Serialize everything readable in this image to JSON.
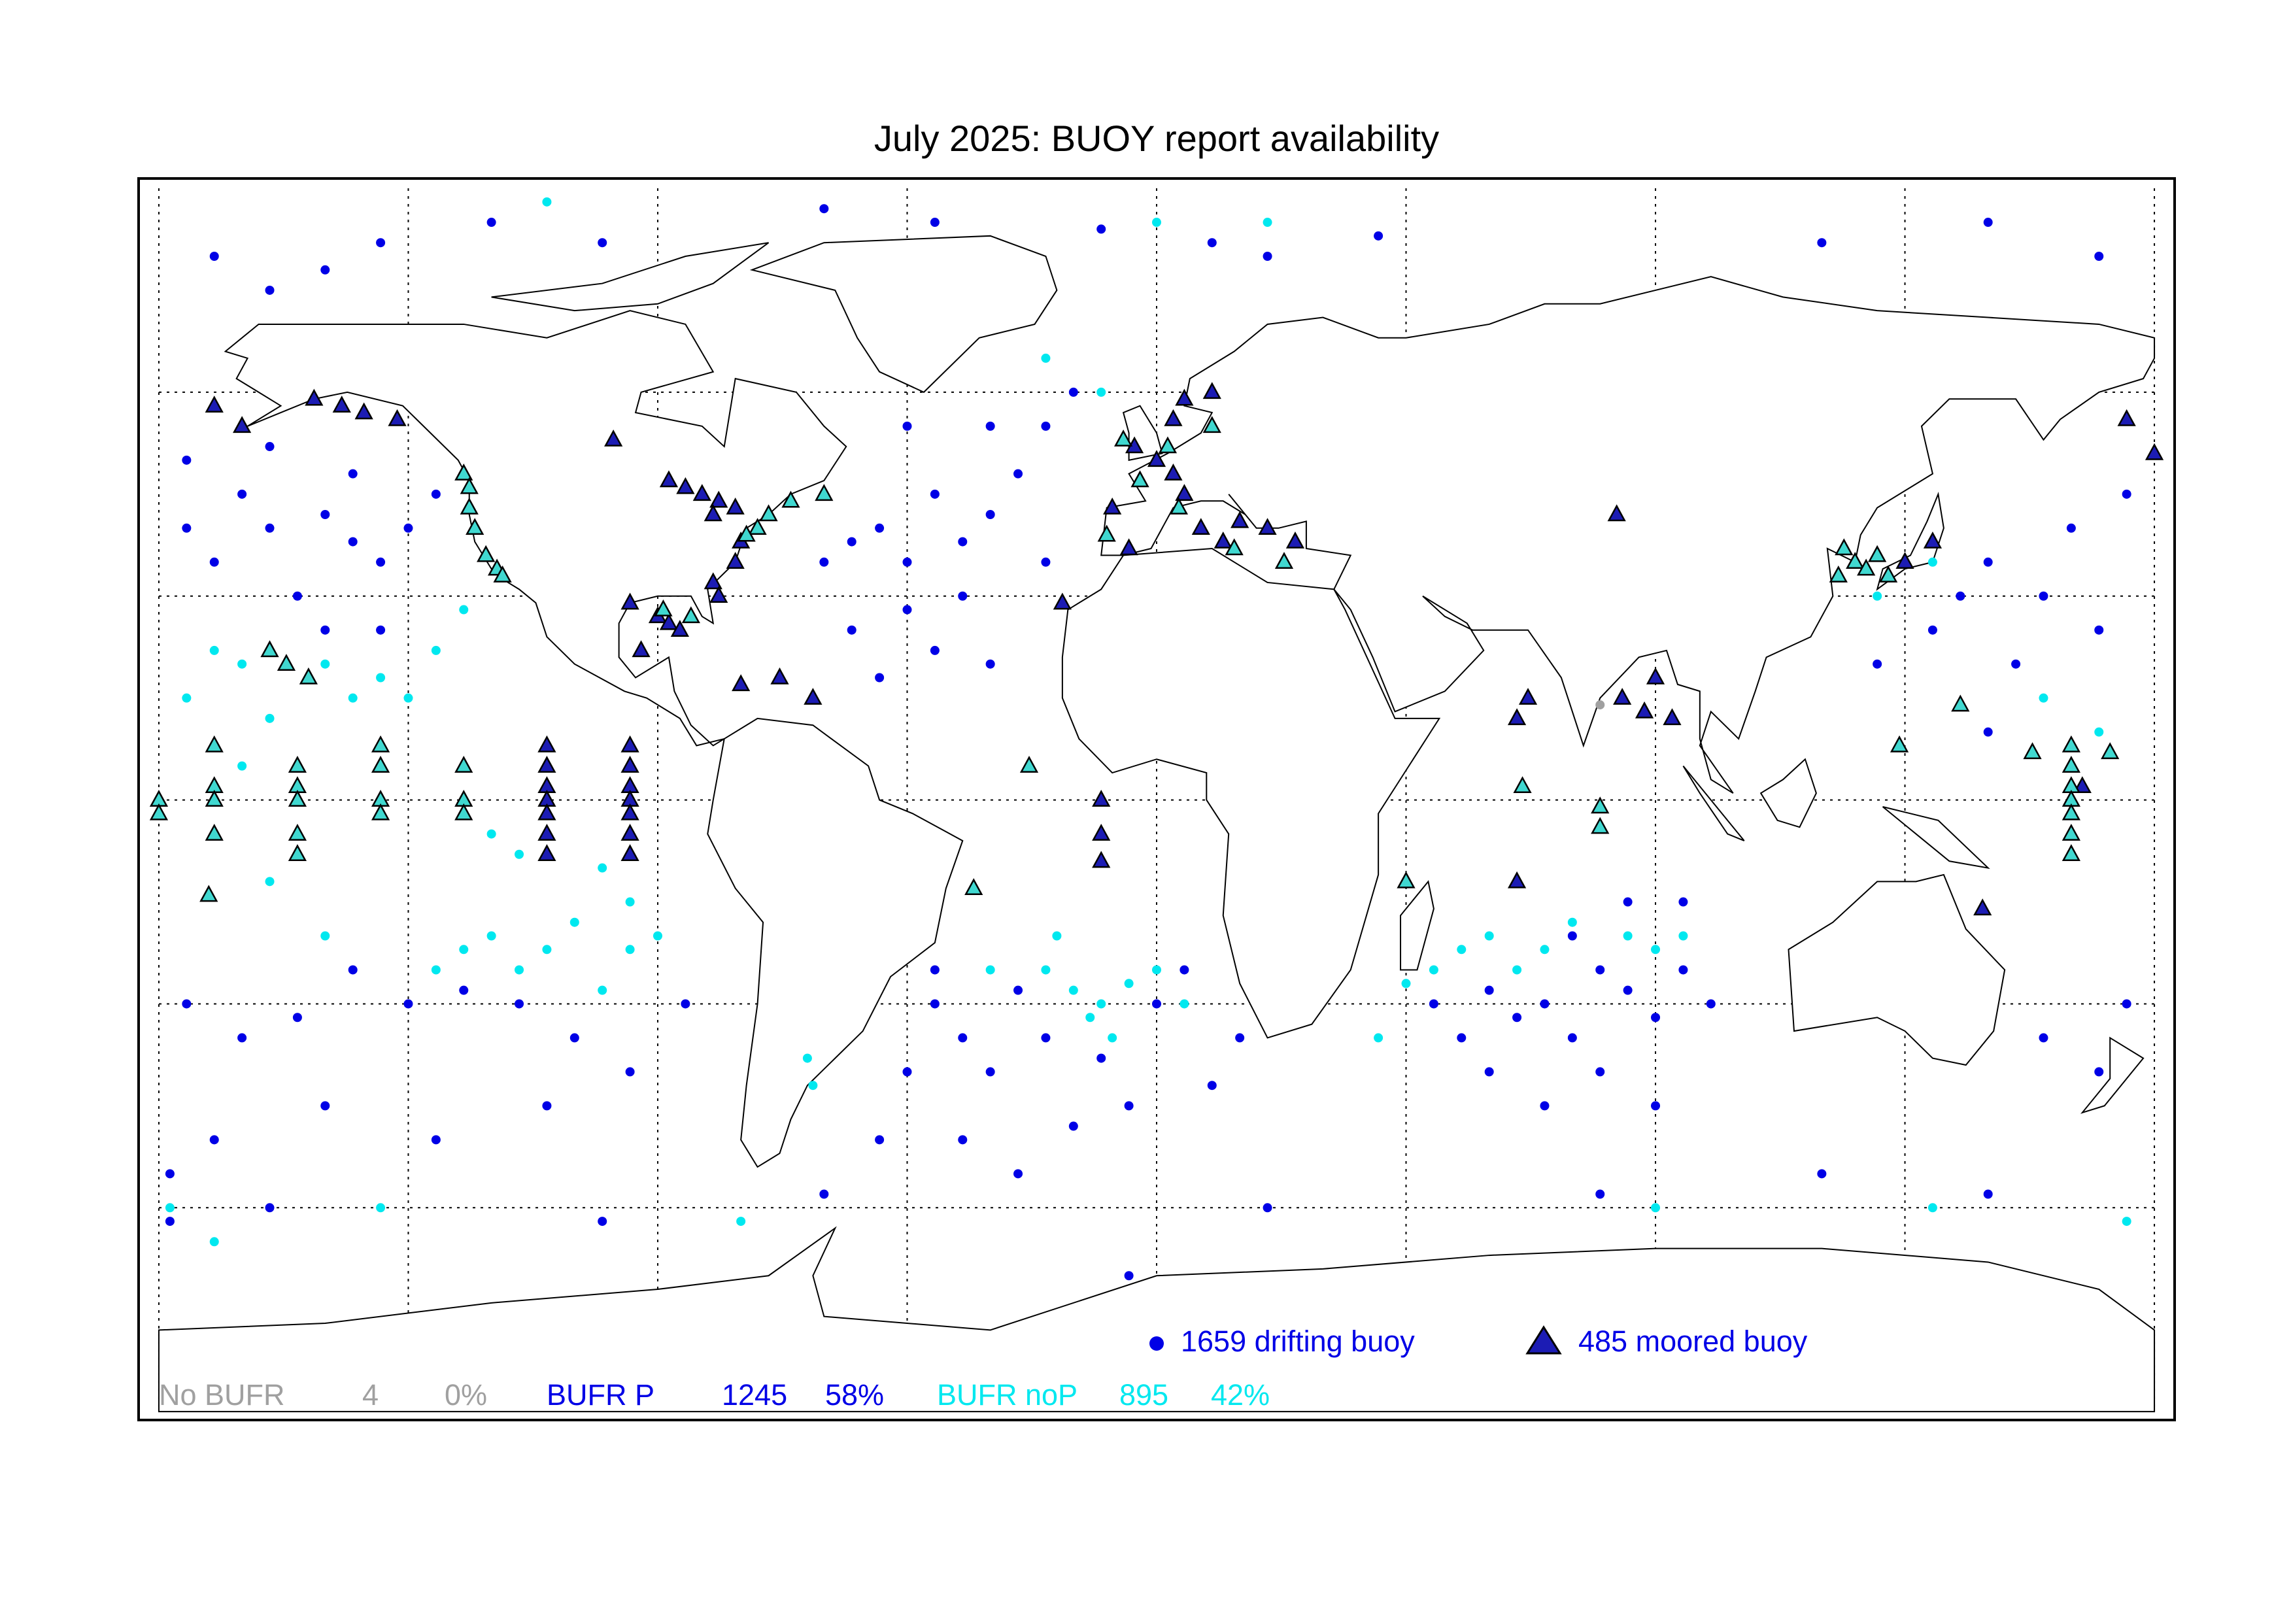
{
  "title": "July 2025: BUOY report availability",
  "graticule": {
    "longitudes": [
      -180,
      -135,
      -90,
      -45,
      0,
      45,
      90,
      135,
      180
    ],
    "latitudes": [
      -60,
      -30,
      0,
      30,
      60
    ]
  },
  "legend": [
    {
      "label": "1659 drifting buoy",
      "marker": "circle",
      "color": "#0000e6"
    },
    {
      "label": "485 moored buoy",
      "marker": "triangle",
      "color": "#1c1cb4"
    }
  ],
  "status_summary": [
    {
      "label": "No BUFR",
      "count": 4,
      "percent": "0%",
      "color": "#a0a0a0"
    },
    {
      "label": "BUFR P",
      "count": 1245,
      "percent": "58%",
      "color": "#0000e6"
    },
    {
      "label": "BUFR noP",
      "count": 895,
      "percent": "42%",
      "color": "#00e8ef"
    }
  ],
  "buoys": [
    {
      "marker": "circle",
      "color": "#0000e6",
      "points": [
        [
          -175,
          50
        ],
        [
          -165,
          45
        ],
        [
          -160,
          40
        ],
        [
          -150,
          42
        ],
        [
          -145,
          38
        ],
        [
          -140,
          35
        ],
        [
          -135,
          40
        ],
        [
          -130,
          45
        ],
        [
          -155,
          30
        ],
        [
          -150,
          25
        ],
        [
          -140,
          25
        ],
        [
          -145,
          48
        ],
        [
          -170,
          35
        ],
        [
          -160,
          52
        ],
        [
          -175,
          40
        ],
        [
          -170,
          80
        ],
        [
          -150,
          78
        ],
        [
          -140,
          82
        ],
        [
          -120,
          85
        ],
        [
          -100,
          82
        ],
        [
          -60,
          87
        ],
        [
          -40,
          85
        ],
        [
          -10,
          84
        ],
        [
          10,
          82
        ],
        [
          20,
          80
        ],
        [
          40,
          83
        ],
        [
          -160,
          75
        ],
        [
          120,
          82
        ],
        [
          150,
          85
        ],
        [
          170,
          80
        ],
        [
          -60,
          35
        ],
        [
          -55,
          38
        ],
        [
          -50,
          40
        ],
        [
          -45,
          35
        ],
        [
          -40,
          45
        ],
        [
          -35,
          38
        ],
        [
          -30,
          42
        ],
        [
          -25,
          48
        ],
        [
          -20,
          35
        ],
        [
          -45,
          28
        ],
        [
          -55,
          25
        ],
        [
          -40,
          22
        ],
        [
          -35,
          30
        ],
        [
          -30,
          20
        ],
        [
          -50,
          18
        ],
        [
          -20,
          55
        ],
        [
          -30,
          55
        ],
        [
          -15,
          60
        ],
        [
          -45,
          55
        ],
        [
          -40,
          -30
        ],
        [
          -35,
          -35
        ],
        [
          -30,
          -40
        ],
        [
          -25,
          -28
        ],
        [
          -20,
          -35
        ],
        [
          -10,
          -38
        ],
        [
          -5,
          -45
        ],
        [
          0,
          -30
        ],
        [
          5,
          -25
        ],
        [
          10,
          -42
        ],
        [
          -45,
          -40
        ],
        [
          -50,
          -50
        ],
        [
          -35,
          -50
        ],
        [
          -25,
          -55
        ],
        [
          -15,
          -48
        ],
        [
          15,
          -35
        ],
        [
          -40,
          -25
        ],
        [
          50,
          -30
        ],
        [
          55,
          -35
        ],
        [
          60,
          -28
        ],
        [
          65,
          -32
        ],
        [
          70,
          -30
        ],
        [
          75,
          -35
        ],
        [
          80,
          -25
        ],
        [
          85,
          -28
        ],
        [
          90,
          -32
        ],
        [
          95,
          -25
        ],
        [
          60,
          -40
        ],
        [
          70,
          -45
        ],
        [
          80,
          -40
        ],
        [
          90,
          -45
        ],
        [
          100,
          -30
        ],
        [
          75,
          -20
        ],
        [
          85,
          -15
        ],
        [
          95,
          -15
        ],
        [
          -175,
          -30
        ],
        [
          -165,
          -35
        ],
        [
          -155,
          -32
        ],
        [
          -145,
          -25
        ],
        [
          -135,
          -30
        ],
        [
          -125,
          -28
        ],
        [
          -115,
          -30
        ],
        [
          -105,
          -35
        ],
        [
          -95,
          -40
        ],
        [
          -85,
          -30
        ],
        [
          -150,
          -45
        ],
        [
          -130,
          -50
        ],
        [
          -110,
          -45
        ],
        [
          -170,
          -50
        ],
        [
          -160,
          -60
        ],
        [
          160,
          -35
        ],
        [
          170,
          -40
        ],
        [
          175,
          -30
        ],
        [
          -178,
          -55
        ],
        [
          140,
          25
        ],
        [
          145,
          30
        ],
        [
          150,
          35
        ],
        [
          155,
          20
        ],
        [
          160,
          30
        ],
        [
          165,
          40
        ],
        [
          170,
          25
        ],
        [
          175,
          45
        ],
        [
          130,
          20
        ],
        [
          150,
          10
        ],
        [
          -178,
          -62
        ],
        [
          120,
          -55
        ],
        [
          150,
          -58
        ],
        [
          -100,
          -62
        ],
        [
          20,
          -60
        ],
        [
          80,
          -58
        ],
        [
          -60,
          -58
        ],
        [
          -5,
          -70
        ]
      ]
    },
    {
      "marker": "circle",
      "color": "#00e8ef",
      "points": [
        [
          -170,
          22
        ],
        [
          -165,
          20
        ],
        [
          -150,
          20
        ],
        [
          -145,
          15
        ],
        [
          -140,
          18
        ],
        [
          -130,
          22
        ],
        [
          -125,
          28
        ],
        [
          -160,
          12
        ],
        [
          -175,
          15
        ],
        [
          -135,
          15
        ],
        [
          -120,
          -5
        ],
        [
          -115,
          -8
        ],
        [
          -100,
          -10
        ],
        [
          -95,
          -15
        ],
        [
          -150,
          -20
        ],
        [
          -160,
          -12
        ],
        [
          -165,
          5
        ],
        [
          -130,
          -25
        ],
        [
          -125,
          -22
        ],
        [
          -120,
          -20
        ],
        [
          -115,
          -25
        ],
        [
          -110,
          -22
        ],
        [
          -105,
          -18
        ],
        [
          -95,
          -22
        ],
        [
          -90,
          -20
        ],
        [
          -100,
          -28
        ],
        [
          -20,
          -25
        ],
        [
          -15,
          -28
        ],
        [
          -10,
          -30
        ],
        [
          -5,
          -27
        ],
        [
          0,
          -25
        ],
        [
          -12,
          -32
        ],
        [
          -8,
          -35
        ],
        [
          -18,
          -20
        ],
        [
          5,
          -30
        ],
        [
          -30,
          -25
        ],
        [
          45,
          -27
        ],
        [
          50,
          -25
        ],
        [
          55,
          -22
        ],
        [
          60,
          -20
        ],
        [
          65,
          -25
        ],
        [
          70,
          -22
        ],
        [
          75,
          -18
        ],
        [
          85,
          -20
        ],
        [
          90,
          -22
        ],
        [
          95,
          -20
        ],
        [
          40,
          -35
        ],
        [
          -62,
          -42
        ],
        [
          -63,
          -38
        ],
        [
          -75,
          -62
        ],
        [
          -178,
          -60
        ],
        [
          175,
          -62
        ],
        [
          140,
          -60
        ],
        [
          90,
          -60
        ],
        [
          -140,
          -60
        ],
        [
          -170,
          -65
        ],
        [
          130,
          30
        ],
        [
          140,
          35
        ],
        [
          160,
          15
        ],
        [
          170,
          10
        ],
        [
          -10,
          60
        ],
        [
          -20,
          65
        ],
        [
          20,
          85
        ],
        [
          -110,
          88
        ],
        [
          0,
          85
        ]
      ]
    },
    {
      "marker": "circle",
      "color": "#a0a0a0",
      "points": [
        [
          80,
          14
        ]
      ]
    },
    {
      "marker": "triangle",
      "color": "#1c1cb4",
      "points": [
        [
          -110,
          8
        ],
        [
          -110,
          5
        ],
        [
          -110,
          2
        ],
        [
          -110,
          0
        ],
        [
          -110,
          -2
        ],
        [
          -110,
          -5
        ],
        [
          -110,
          -8
        ],
        [
          -95,
          8
        ],
        [
          -95,
          5
        ],
        [
          -95,
          2
        ],
        [
          -95,
          0
        ],
        [
          -95,
          -2
        ],
        [
          -95,
          -5
        ],
        [
          -95,
          -8
        ],
        [
          -152,
          59
        ],
        [
          -147,
          58
        ],
        [
          -143,
          57
        ],
        [
          -137,
          56
        ],
        [
          -165,
          55
        ],
        [
          -170,
          58
        ],
        [
          -98,
          53
        ],
        [
          -88,
          47
        ],
        [
          -85,
          46
        ],
        [
          -82,
          45
        ],
        [
          -79,
          44
        ],
        [
          -76,
          43
        ],
        [
          -80,
          42
        ],
        [
          -75,
          38
        ],
        [
          -76,
          35
        ],
        [
          -80,
          32
        ],
        [
          -79,
          30
        ],
        [
          -95,
          29
        ],
        [
          -90,
          27
        ],
        [
          -88,
          26
        ],
        [
          -86,
          25
        ],
        [
          -93,
          22
        ],
        [
          -68,
          18
        ],
        [
          -62,
          15
        ],
        [
          -75,
          17
        ],
        [
          -4,
          52
        ],
        [
          0,
          50
        ],
        [
          3,
          48
        ],
        [
          5,
          45
        ],
        [
          8,
          40
        ],
        [
          12,
          38
        ],
        [
          15,
          41
        ],
        [
          20,
          40
        ],
        [
          25,
          38
        ],
        [
          -8,
          43
        ],
        [
          -5,
          37
        ],
        [
          3,
          56
        ],
        [
          5,
          59
        ],
        [
          10,
          60
        ],
        [
          -10,
          0
        ],
        [
          -10,
          -5
        ],
        [
          -10,
          -9
        ],
        [
          -17,
          29
        ],
        [
          83,
          42
        ],
        [
          67,
          15
        ],
        [
          65,
          12
        ],
        [
          65,
          -12
        ],
        [
          84,
          15
        ],
        [
          88,
          13
        ],
        [
          90,
          18
        ],
        [
          93,
          12
        ],
        [
          140,
          38
        ],
        [
          135,
          35
        ],
        [
          175,
          56
        ],
        [
          180,
          51
        ],
        [
          149,
          -16
        ],
        [
          167,
          2
        ]
      ]
    },
    {
      "marker": "triangle",
      "color": "#40d8d0",
      "points": [
        [
          -170,
          8
        ],
        [
          -170,
          2
        ],
        [
          -170,
          0
        ],
        [
          -170,
          -5
        ],
        [
          -155,
          5
        ],
        [
          -155,
          2
        ],
        [
          -155,
          0
        ],
        [
          -155,
          -5
        ],
        [
          -155,
          -8
        ],
        [
          -140,
          8
        ],
        [
          -140,
          5
        ],
        [
          -140,
          0
        ],
        [
          -140,
          -2
        ],
        [
          -125,
          5
        ],
        [
          -125,
          0
        ],
        [
          -125,
          -2
        ],
        [
          165,
          8
        ],
        [
          165,
          5
        ],
        [
          165,
          2
        ],
        [
          165,
          0
        ],
        [
          165,
          -2
        ],
        [
          165,
          -5
        ],
        [
          165,
          -8
        ],
        [
          -180,
          0
        ],
        [
          -180,
          -2
        ],
        [
          -160,
          22
        ],
        [
          -157,
          20
        ],
        [
          -153,
          18
        ],
        [
          -125,
          48
        ],
        [
          -124,
          46
        ],
        [
          -124,
          43
        ],
        [
          -123,
          40
        ],
        [
          -121,
          36
        ],
        [
          -119,
          34
        ],
        [
          -118,
          33
        ],
        [
          -70,
          42
        ],
        [
          -72,
          40
        ],
        [
          -74,
          39
        ],
        [
          -66,
          44
        ],
        [
          -60,
          45
        ],
        [
          -89,
          28
        ],
        [
          -84,
          27
        ],
        [
          -6,
          53
        ],
        [
          2,
          52
        ],
        [
          10,
          55
        ],
        [
          -3,
          47
        ],
        [
          -9,
          39
        ],
        [
          14,
          37
        ],
        [
          23,
          35
        ],
        [
          4,
          43
        ],
        [
          124,
          37
        ],
        [
          126,
          35
        ],
        [
          128,
          34
        ],
        [
          130,
          36
        ],
        [
          132,
          33
        ],
        [
          123,
          33
        ],
        [
          -33,
          -13
        ],
        [
          -23,
          5
        ],
        [
          66,
          2
        ],
        [
          80,
          -1
        ],
        [
          80,
          -4
        ],
        [
          45,
          -12
        ],
        [
          145,
          14
        ],
        [
          134,
          8
        ],
        [
          158,
          7
        ],
        [
          172,
          7
        ],
        [
          -171,
          -14
        ]
      ]
    }
  ]
}
